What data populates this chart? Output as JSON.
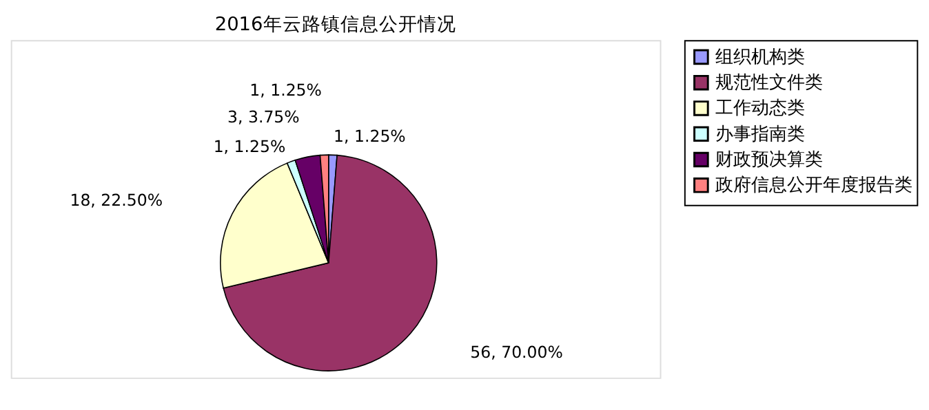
{
  "chart_data": {
    "type": "pie",
    "title": "2016年云路镇信息公开情况",
    "categories": [
      "组织机构类",
      "规范性文件类",
      "工作动态类",
      "办事指南类",
      "财政预决算类",
      "政府信息公开年度报告类"
    ],
    "values": [
      1,
      56,
      18,
      1,
      3,
      1
    ],
    "colors": [
      "#9999ff",
      "#993366",
      "#ffffcc",
      "#ccffff",
      "#660066",
      "#ff8080"
    ],
    "value_labels": [
      "1, 1.25%",
      "56, 70.00%",
      "18, 22.50%",
      "1, 1.25%",
      "3, 3.75%",
      "1, 1.25%"
    ],
    "legend": "right"
  }
}
